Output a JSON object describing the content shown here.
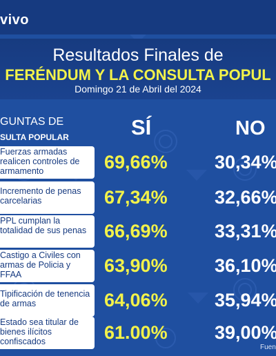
{
  "brand": {
    "logo_text": "vivo"
  },
  "header": {
    "title_line1": "Resultados Finales de",
    "title_line2": "FERÉNDUM Y LA CONSULTA POPUL",
    "date": "Domingo 21 de Abril del 2024"
  },
  "columns": {
    "questions_line1": "GUNTAS DE",
    "questions_line2": "SULTA POPULAR",
    "yes": "SÍ",
    "no": "NO"
  },
  "rows": [
    {
      "question": "Fuerzas armadas realicen controles de armamento",
      "yes": "69,66%",
      "no": "30,34%"
    },
    {
      "question": "Incremento de penas carcelarias",
      "yes": "67,34%",
      "no": "32,66%"
    },
    {
      "question": "PPL cumplan la totalidad de sus penas",
      "yes": "66,69%",
      "no": "33,31%"
    },
    {
      "question": "Castigo a Civiles con armas de Policia y FFAA",
      "yes": "63,90%",
      "no": "36,10%"
    },
    {
      "question": "Tipificación de tenencia de armas",
      "yes": "64,06%",
      "no": "35,94%"
    },
    {
      "question": "Estado sea titular de bienes ilícitos confiscados",
      "yes": "61.00%",
      "no": "39,00%"
    }
  ],
  "footer": {
    "source": "Fuen"
  },
  "colors": {
    "background": "#1f4fa0",
    "band": "#173b80",
    "accent_yellow": "#f2f24a",
    "question_text": "#163a80"
  }
}
